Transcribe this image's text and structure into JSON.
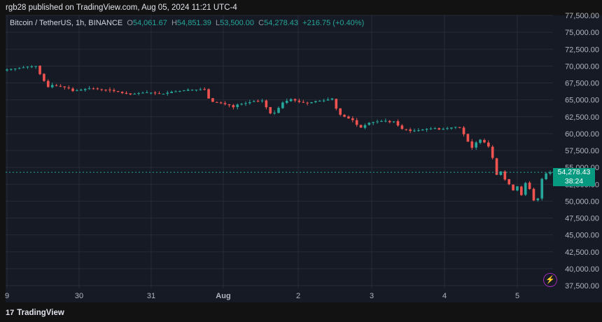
{
  "header": {
    "published_by": "rgb28 published on TradingView.com, Aug 05, 2024 11:21 UTC-4"
  },
  "legend": {
    "symbol": "Bitcoin / TetherUS, 1h, BINANCE",
    "open_label": "O",
    "open": "54,061.67",
    "high_label": "H",
    "high": "54,851.39",
    "low_label": "L",
    "low": "53,500.00",
    "close_label": "C",
    "close": "54,278.43",
    "change": "+216.75 (+0.40%)"
  },
  "price_tag": {
    "price": "54,278.43",
    "countdown": "38:24"
  },
  "footer": {
    "brand": "TradingView",
    "logo_mark": "17"
  },
  "colors": {
    "up": "#26a69a",
    "down": "#ef5350",
    "background": "#161a25",
    "grid": "#262b38"
  },
  "chart_data": {
    "type": "candlestick",
    "x_tick_labels": [
      "9",
      "30",
      "31",
      "Aug",
      "2",
      "3",
      "4",
      "5"
    ],
    "y_tick_labels": [
      "77,500.00",
      "75,000.00",
      "72,500.00",
      "70,000.00",
      "67,500.00",
      "65,000.00",
      "62,500.00",
      "60,000.00",
      "57,500.00",
      "55,000.00",
      "52,500.00",
      "50,000.00",
      "47,500.00",
      "45,000.00",
      "42,500.00",
      "40,000.00",
      "37,500.00"
    ],
    "ylim": [
      37500,
      77500
    ],
    "last_price": 54278.43,
    "price_path": [
      [
        0,
        69500
      ],
      [
        3,
        69700
      ],
      [
        5,
        69900
      ],
      [
        7,
        70000
      ],
      [
        8,
        68800
      ],
      [
        9,
        67800
      ],
      [
        10,
        66900
      ],
      [
        11,
        67200
      ],
      [
        13,
        67000
      ],
      [
        15,
        66700
      ],
      [
        16,
        66300
      ],
      [
        18,
        66500
      ],
      [
        20,
        66700
      ],
      [
        22,
        66600
      ],
      [
        25,
        66400
      ],
      [
        27,
        66200
      ],
      [
        28,
        66000
      ],
      [
        30,
        65800
      ],
      [
        32,
        66000
      ],
      [
        34,
        66100
      ],
      [
        36,
        66000
      ],
      [
        38,
        65900
      ],
      [
        40,
        66200
      ],
      [
        42,
        66300
      ],
      [
        44,
        66500
      ],
      [
        46,
        66500
      ],
      [
        48,
        66600
      ],
      [
        49,
        65200
      ],
      [
        50,
        64700
      ],
      [
        52,
        64500
      ],
      [
        54,
        64200
      ],
      [
        55,
        63900
      ],
      [
        56,
        64300
      ],
      [
        58,
        64500
      ],
      [
        60,
        64800
      ],
      [
        62,
        64900
      ],
      [
        63,
        63900
      ],
      [
        64,
        63000
      ],
      [
        65,
        63100
      ],
      [
        66,
        63800
      ],
      [
        67,
        64600
      ],
      [
        69,
        65100
      ],
      [
        71,
        64700
      ],
      [
        73,
        64500
      ],
      [
        75,
        64800
      ],
      [
        77,
        64900
      ],
      [
        79,
        65200
      ],
      [
        80,
        63700
      ],
      [
        81,
        62800
      ],
      [
        82,
        62500
      ],
      [
        84,
        62000
      ],
      [
        85,
        61300
      ],
      [
        86,
        60900
      ],
      [
        88,
        61600
      ],
      [
        90,
        61800
      ],
      [
        92,
        61900
      ],
      [
        93,
        61700
      ],
      [
        94,
        61800
      ],
      [
        95,
        61200
      ],
      [
        96,
        60700
      ],
      [
        98,
        60400
      ],
      [
        100,
        60500
      ],
      [
        102,
        60700
      ],
      [
        104,
        60800
      ],
      [
        105,
        60600
      ],
      [
        107,
        60800
      ],
      [
        109,
        61000
      ],
      [
        110,
        60900
      ],
      [
        111,
        59900
      ],
      [
        112,
        58800
      ],
      [
        113,
        57900
      ],
      [
        114,
        58700
      ],
      [
        115,
        59100
      ],
      [
        116,
        58700
      ],
      [
        117,
        58100
      ],
      [
        118,
        56400
      ],
      [
        119,
        53900
      ],
      [
        120,
        54400
      ],
      [
        121,
        53200
      ],
      [
        122,
        52500
      ],
      [
        123,
        51600
      ],
      [
        124,
        52200
      ],
      [
        125,
        50900
      ],
      [
        126,
        52700
      ],
      [
        127,
        51800
      ],
      [
        128,
        50100
      ],
      [
        129,
        50400
      ],
      [
        130,
        53300
      ],
      [
        131,
        54100
      ],
      [
        132,
        54278
      ]
    ]
  }
}
